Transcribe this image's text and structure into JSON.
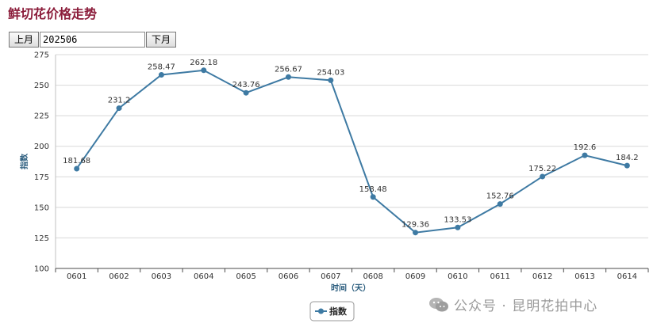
{
  "header": {
    "title": "鲜切花价格走势"
  },
  "nav": {
    "prev_label": "上月",
    "month_value": "202506",
    "next_label": "下月"
  },
  "watermark": {
    "text": "公众号 · 昆明花拍中心"
  },
  "chart_data": {
    "type": "line",
    "title": "",
    "xlabel": "时间（天）",
    "ylabel": "指数",
    "ylim": [
      100,
      275
    ],
    "yticks": [
      100,
      125,
      150,
      175,
      200,
      225,
      250,
      275
    ],
    "grid": true,
    "legend_position": "bottom-center",
    "categories": [
      "0601",
      "0602",
      "0603",
      "0604",
      "0605",
      "0606",
      "0607",
      "0608",
      "0609",
      "0610",
      "0611",
      "0612",
      "0613",
      "0614"
    ],
    "series": [
      {
        "name": "指数",
        "color": "#3e7aa3",
        "values": [
          181.68,
          231.2,
          258.47,
          262.18,
          243.76,
          256.67,
          254.03,
          158.48,
          129.36,
          133.53,
          152.76,
          175.22,
          192.6,
          184.2
        ],
        "labels": [
          "181.68",
          "231.2",
          "258.47",
          "262.18",
          "243.76",
          "256.67",
          "254.03",
          "158.48",
          "129.36",
          "133.53",
          "152.76",
          "175.22",
          "192.6",
          "184.2"
        ]
      }
    ]
  }
}
